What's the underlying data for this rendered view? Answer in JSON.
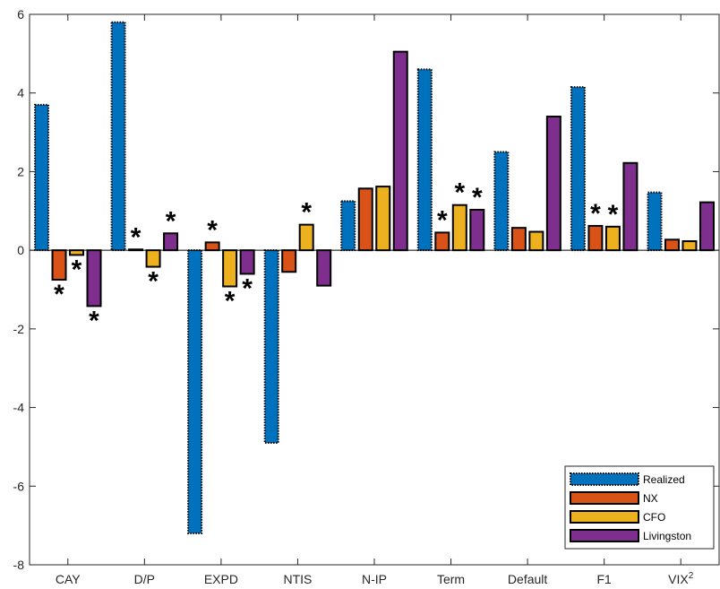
{
  "chart_data": {
    "type": "bar",
    "title": "",
    "xlabel": "",
    "ylabel": "",
    "ylim": [
      -8,
      6
    ],
    "yticks": [
      -8,
      -6,
      -4,
      -2,
      0,
      2,
      4,
      6
    ],
    "ytick_labels": [
      "-8",
      "-6",
      "-4",
      "-2",
      "0",
      "2",
      "4",
      "6"
    ],
    "categories": [
      "CAY",
      "D/P",
      "EXPD",
      "NTIS",
      "N-IP",
      "Term",
      "Default",
      "F1",
      "VIX"
    ],
    "category_superscripts": [
      "",
      "",
      "",
      "",
      "",
      "",
      "",
      "",
      "2"
    ],
    "legend_position": "bottom-right",
    "grid": false,
    "series": [
      {
        "name": "Realized",
        "color": "#0072BD",
        "style": "dotted-edge",
        "values": [
          3.7,
          5.8,
          -7.2,
          -4.9,
          1.25,
          4.6,
          2.5,
          4.15,
          1.47
        ],
        "stars": [
          false,
          false,
          false,
          false,
          false,
          false,
          false,
          false,
          false
        ]
      },
      {
        "name": "NX",
        "color": "#D95319",
        "style": "solid-edge",
        "values": [
          -0.75,
          0.02,
          0.2,
          -0.55,
          1.57,
          0.45,
          0.57,
          0.62,
          0.27
        ],
        "stars": [
          true,
          true,
          true,
          false,
          false,
          true,
          false,
          true,
          false
        ]
      },
      {
        "name": "CFO",
        "color": "#EDB120",
        "style": "solid-edge",
        "values": [
          -0.12,
          -0.42,
          -0.92,
          0.65,
          1.62,
          1.15,
          0.47,
          0.6,
          0.23
        ],
        "stars": [
          true,
          true,
          true,
          true,
          false,
          true,
          false,
          true,
          false
        ]
      },
      {
        "name": "Livingston",
        "color": "#7E2F8E",
        "style": "solid-edge",
        "values": [
          -1.42,
          0.43,
          -0.6,
          -0.9,
          5.05,
          1.03,
          3.4,
          2.22,
          1.22
        ],
        "stars": [
          true,
          true,
          true,
          false,
          false,
          true,
          false,
          false,
          false
        ]
      }
    ],
    "significance_marker": "*"
  }
}
